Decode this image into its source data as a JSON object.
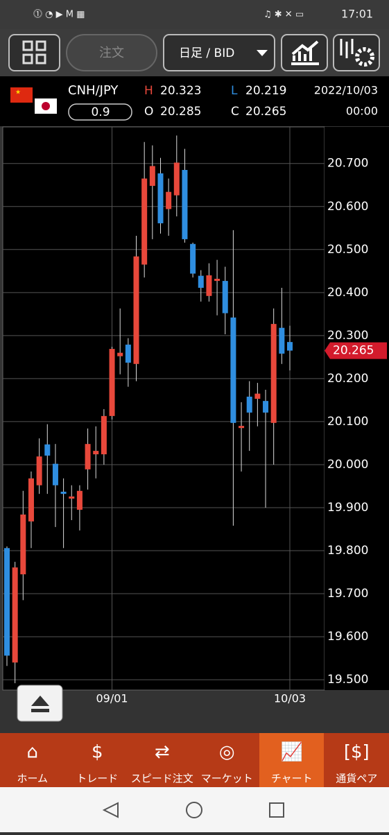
{
  "status_bar": {
    "time": "17:01"
  },
  "toolbar": {
    "order": "注文",
    "period": "日足 / BID"
  },
  "quote": {
    "pair": "CNH/JPY",
    "spread": "0.9",
    "h_label": "H",
    "high": "20.323",
    "l_label": "L",
    "low": "20.219",
    "o_label": "O",
    "open": "20.285",
    "c_label": "C",
    "close": "20.265",
    "date": "2022/10/03",
    "time": "00:00"
  },
  "chart_data": {
    "type": "candlestick",
    "categories": [
      null,
      null,
      null,
      null,
      null,
      null,
      null,
      null,
      null,
      null,
      null,
      null,
      null,
      "09/01",
      null,
      null,
      null,
      null,
      null,
      null,
      null,
      null,
      null,
      null,
      null,
      null,
      null,
      null,
      null,
      null,
      null,
      null,
      null,
      null,
      null,
      "10/03"
    ],
    "open": [
      19.806,
      19.54,
      19.745,
      19.868,
      19.952,
      20.047,
      20.002,
      19.937,
      19.921,
      19.895,
      19.989,
      20.024,
      20.024,
      20.113,
      20.252,
      20.279,
      20.234,
      20.465,
      20.648,
      20.677,
      20.594,
      20.626,
      20.685,
      20.513,
      20.439,
      20.392,
      20.427,
      20.427,
      20.342,
      20.085,
      20.158,
      20.153,
      20.148,
      20.097,
      20.318,
      20.285
    ],
    "high": [
      19.81,
      19.774,
      19.939,
      19.984,
      20.061,
      20.094,
      20.048,
      19.968,
      19.952,
      19.952,
      20.084,
      20.089,
      20.129,
      20.274,
      20.363,
      20.294,
      20.532,
      20.75,
      20.742,
      20.713,
      20.665,
      20.765,
      20.734,
      20.516,
      20.452,
      20.468,
      20.476,
      20.46,
      20.545,
      20.145,
      20.194,
      20.19,
      20.174,
      20.363,
      20.411,
      20.323
    ],
    "low": [
      19.532,
      19.492,
      19.685,
      19.806,
      19.932,
      19.932,
      19.855,
      19.806,
      19.871,
      19.847,
      19.942,
      19.968,
      20.0,
      20.105,
      20.21,
      20.181,
      20.194,
      20.435,
      20.524,
      20.537,
      20.532,
      20.577,
      20.516,
      20.435,
      20.379,
      20.379,
      20.347,
      20.303,
      19.858,
      19.984,
      20.032,
      20.089,
      19.9,
      20.0,
      20.234,
      20.219
    ],
    "close": [
      19.556,
      19.761,
      19.884,
      19.968,
      20.019,
      20.021,
      19.952,
      19.932,
      19.926,
      19.939,
      20.048,
      20.032,
      20.113,
      20.269,
      20.26,
      20.237,
      20.484,
      20.665,
      20.694,
      20.561,
      20.634,
      20.702,
      20.524,
      20.444,
      20.411,
      20.44,
      20.432,
      20.352,
      20.097,
      20.09,
      20.121,
      20.165,
      20.121,
      20.327,
      20.258,
      20.265
    ],
    "up_color": "#e8483b",
    "down_color": "#2f8ee0",
    "ylim": [
      19.476,
      20.785
    ],
    "yticks": [
      {
        "value": 19.5,
        "label": "19.500"
      },
      {
        "value": 19.6,
        "label": "19.600"
      },
      {
        "value": 19.7,
        "label": "19.700"
      },
      {
        "value": 19.8,
        "label": "19.800"
      },
      {
        "value": 19.9,
        "label": "19.900"
      },
      {
        "value": 20.0,
        "label": "20.000"
      },
      {
        "value": 20.1,
        "label": "20.100"
      },
      {
        "value": 20.2,
        "label": "20.200"
      },
      {
        "value": 20.3,
        "label": "20.300"
      },
      {
        "value": 20.4,
        "label": "20.400"
      },
      {
        "value": 20.5,
        "label": "20.500"
      },
      {
        "value": 20.6,
        "label": "20.600"
      },
      {
        "value": 20.7,
        "label": "20.700"
      }
    ],
    "grid": true,
    "last_price": {
      "value": 20.265,
      "label": "20.265"
    }
  },
  "nav": [
    "ホーム",
    "トレード",
    "スピード注文",
    "マーケット",
    "チャート",
    "通貨ペア"
  ]
}
